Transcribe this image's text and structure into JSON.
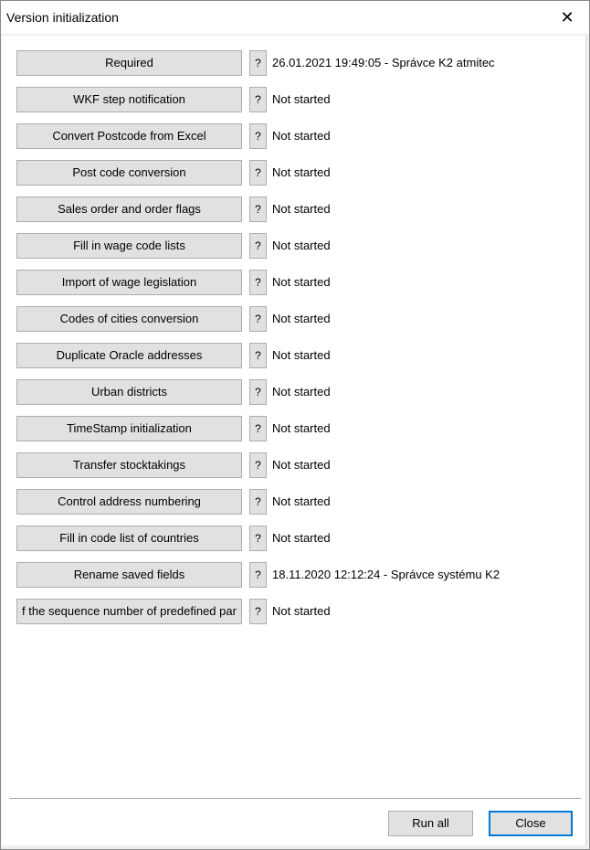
{
  "window": {
    "title": "Version initialization",
    "close_icon": "close-icon"
  },
  "rows": [
    {
      "label": "Required",
      "help": "?",
      "status": "26.01.2021 19:49:05 - Správce K2 atmitec"
    },
    {
      "label": "WKF step notification",
      "help": "?",
      "status": "Not started"
    },
    {
      "label": "Convert Postcode from Excel",
      "help": "?",
      "status": "Not started"
    },
    {
      "label": "Post code conversion",
      "help": "?",
      "status": "Not started"
    },
    {
      "label": "Sales order and order flags",
      "help": "?",
      "status": "Not started"
    },
    {
      "label": "Fill in wage code lists",
      "help": "?",
      "status": "Not started"
    },
    {
      "label": "Import of wage legislation",
      "help": "?",
      "status": "Not started"
    },
    {
      "label": "Codes of cities conversion",
      "help": "?",
      "status": "Not started"
    },
    {
      "label": "Duplicate Oracle addresses",
      "help": "?",
      "status": "Not started"
    },
    {
      "label": "Urban districts",
      "help": "?",
      "status": "Not started"
    },
    {
      "label": "TimeStamp initialization",
      "help": "?",
      "status": "Not started"
    },
    {
      "label": "Transfer stocktakings",
      "help": "?",
      "status": "Not started"
    },
    {
      "label": "Control address numbering",
      "help": "?",
      "status": "Not started"
    },
    {
      "label": "Fill in code list of countries",
      "help": "?",
      "status": "Not started"
    },
    {
      "label": "Rename saved fields",
      "help": "?",
      "status": "18.11.2020 12:12:24 - Správce systému K2"
    },
    {
      "label": "f the sequence number of predefined par",
      "help": "?",
      "status": "Not started"
    }
  ],
  "footer": {
    "run_all": "Run all",
    "close": "Close"
  },
  "colors": {
    "default_button_border": "#0078d7",
    "button_bg": "#e1e1e1"
  }
}
